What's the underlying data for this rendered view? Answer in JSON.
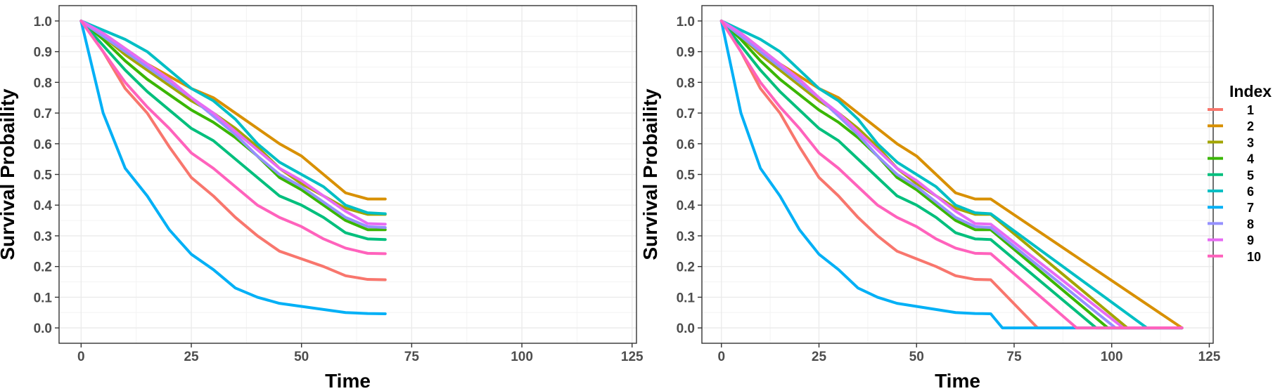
{
  "legend": {
    "title": "Index",
    "entries": [
      {
        "label": "1",
        "color": "#F8766D"
      },
      {
        "label": "2",
        "color": "#D89000"
      },
      {
        "label": "3",
        "color": "#A3A500"
      },
      {
        "label": "4",
        "color": "#39B600"
      },
      {
        "label": "5",
        "color": "#00BF7D"
      },
      {
        "label": "6",
        "color": "#00BFC4"
      },
      {
        "label": "7",
        "color": "#00B0F6"
      },
      {
        "label": "8",
        "color": "#9590FF"
      },
      {
        "label": "9",
        "color": "#E76BF3"
      },
      {
        "label": "10",
        "color": "#FF62BC"
      }
    ]
  },
  "chart_data": [
    {
      "type": "line",
      "xlabel": "Time",
      "ylabel": "Survival Probaility",
      "xlim": [
        -5,
        126
      ],
      "ylim": [
        -0.05,
        1.05
      ],
      "xticks": [
        0,
        25,
        50,
        75,
        100,
        125
      ],
      "yticks": [
        0.0,
        0.1,
        0.2,
        0.3,
        0.4,
        0.5,
        0.6,
        0.7,
        0.8,
        0.9,
        1.0
      ],
      "grid": true,
      "series": [
        {
          "name": "1",
          "color": "#F8766D",
          "x": [
            0,
            5,
            10,
            15,
            20,
            25,
            30,
            35,
            40,
            45,
            50,
            55,
            60,
            65,
            69
          ],
          "y": [
            1.0,
            0.9,
            0.78,
            0.7,
            0.59,
            0.49,
            0.43,
            0.36,
            0.3,
            0.25,
            0.225,
            0.2,
            0.17,
            0.158,
            0.157
          ]
        },
        {
          "name": "2",
          "color": "#D89000",
          "x": [
            0,
            5,
            10,
            15,
            20,
            25,
            30,
            35,
            40,
            45,
            50,
            55,
            60,
            65,
            69
          ],
          "y": [
            1.0,
            0.96,
            0.91,
            0.86,
            0.82,
            0.78,
            0.75,
            0.7,
            0.65,
            0.6,
            0.56,
            0.5,
            0.44,
            0.42,
            0.42
          ]
        },
        {
          "name": "3",
          "color": "#A3A500",
          "x": [
            0,
            5,
            10,
            15,
            20,
            25,
            30,
            35,
            40,
            45,
            50,
            55,
            60,
            65,
            69
          ],
          "y": [
            1.0,
            0.95,
            0.89,
            0.84,
            0.79,
            0.74,
            0.7,
            0.65,
            0.59,
            0.52,
            0.47,
            0.43,
            0.39,
            0.37,
            0.37
          ]
        },
        {
          "name": "4",
          "color": "#39B600",
          "x": [
            0,
            5,
            10,
            15,
            20,
            25,
            30,
            35,
            40,
            45,
            50,
            55,
            60,
            65,
            69
          ],
          "y": [
            1.0,
            0.94,
            0.87,
            0.81,
            0.76,
            0.71,
            0.67,
            0.62,
            0.56,
            0.49,
            0.45,
            0.4,
            0.35,
            0.32,
            0.32
          ]
        },
        {
          "name": "5",
          "color": "#00BF7D",
          "x": [
            0,
            5,
            10,
            15,
            20,
            25,
            30,
            35,
            40,
            45,
            50,
            55,
            60,
            65,
            69
          ],
          "y": [
            1.0,
            0.92,
            0.84,
            0.77,
            0.71,
            0.65,
            0.61,
            0.55,
            0.49,
            0.43,
            0.4,
            0.36,
            0.31,
            0.29,
            0.288
          ]
        },
        {
          "name": "6",
          "color": "#00BFC4",
          "x": [
            0,
            5,
            10,
            15,
            20,
            25,
            30,
            35,
            40,
            45,
            50,
            55,
            60,
            65,
            69
          ],
          "y": [
            1.0,
            0.97,
            0.94,
            0.9,
            0.84,
            0.78,
            0.74,
            0.68,
            0.6,
            0.54,
            0.5,
            0.46,
            0.4,
            0.375,
            0.372
          ]
        },
        {
          "name": "7",
          "color": "#00B0F6",
          "x": [
            0,
            5,
            10,
            15,
            20,
            25,
            30,
            35,
            40,
            45,
            50,
            55,
            60,
            65,
            69
          ],
          "y": [
            1.0,
            0.7,
            0.52,
            0.43,
            0.32,
            0.24,
            0.19,
            0.13,
            0.1,
            0.08,
            0.07,
            0.06,
            0.05,
            0.047,
            0.046
          ]
        },
        {
          "name": "8",
          "color": "#9590FF",
          "x": [
            0,
            5,
            10,
            15,
            20,
            25,
            30,
            35,
            40,
            45,
            50,
            55,
            60,
            65,
            69
          ],
          "y": [
            1.0,
            0.95,
            0.9,
            0.85,
            0.8,
            0.75,
            0.69,
            0.63,
            0.56,
            0.5,
            0.46,
            0.41,
            0.36,
            0.33,
            0.327
          ]
        },
        {
          "name": "9",
          "color": "#E76BF3",
          "x": [
            0,
            5,
            10,
            15,
            20,
            25,
            30,
            35,
            40,
            45,
            50,
            55,
            60,
            65,
            69
          ],
          "y": [
            1.0,
            0.96,
            0.91,
            0.86,
            0.81,
            0.75,
            0.7,
            0.64,
            0.58,
            0.52,
            0.48,
            0.43,
            0.38,
            0.34,
            0.338
          ]
        },
        {
          "name": "10",
          "color": "#FF62BC",
          "x": [
            0,
            5,
            10,
            15,
            20,
            25,
            30,
            35,
            40,
            45,
            50,
            55,
            60,
            65,
            69
          ],
          "y": [
            1.0,
            0.9,
            0.8,
            0.72,
            0.65,
            0.57,
            0.52,
            0.46,
            0.4,
            0.36,
            0.33,
            0.29,
            0.26,
            0.243,
            0.242
          ]
        }
      ]
    },
    {
      "type": "line",
      "xlabel": "Time",
      "ylabel": "Survival Probaility",
      "xlim": [
        -5,
        126
      ],
      "ylim": [
        -0.05,
        1.05
      ],
      "xticks": [
        0,
        25,
        50,
        75,
        100,
        125
      ],
      "yticks": [
        0.0,
        0.1,
        0.2,
        0.3,
        0.4,
        0.5,
        0.6,
        0.7,
        0.8,
        0.9,
        1.0
      ],
      "grid": true,
      "series": [
        {
          "name": "1",
          "color": "#F8766D",
          "x": [
            0,
            5,
            10,
            15,
            20,
            25,
            30,
            35,
            40,
            45,
            50,
            55,
            60,
            65,
            69,
            81,
            118
          ],
          "y": [
            1.0,
            0.9,
            0.78,
            0.7,
            0.59,
            0.49,
            0.43,
            0.36,
            0.3,
            0.25,
            0.225,
            0.2,
            0.17,
            0.158,
            0.157,
            0.0,
            0.0
          ]
        },
        {
          "name": "2",
          "color": "#D89000",
          "x": [
            0,
            5,
            10,
            15,
            20,
            25,
            30,
            35,
            40,
            45,
            50,
            55,
            60,
            65,
            69,
            118
          ],
          "y": [
            1.0,
            0.96,
            0.91,
            0.86,
            0.82,
            0.78,
            0.75,
            0.7,
            0.65,
            0.6,
            0.56,
            0.5,
            0.44,
            0.42,
            0.42,
            0.0
          ]
        },
        {
          "name": "3",
          "color": "#A3A500",
          "x": [
            0,
            5,
            10,
            15,
            20,
            25,
            30,
            35,
            40,
            45,
            50,
            55,
            60,
            65,
            69,
            104,
            118
          ],
          "y": [
            1.0,
            0.95,
            0.89,
            0.84,
            0.79,
            0.74,
            0.7,
            0.65,
            0.59,
            0.52,
            0.47,
            0.43,
            0.39,
            0.37,
            0.37,
            0.0,
            0.0
          ]
        },
        {
          "name": "4",
          "color": "#39B600",
          "x": [
            0,
            5,
            10,
            15,
            20,
            25,
            30,
            35,
            40,
            45,
            50,
            55,
            60,
            65,
            69,
            99,
            118
          ],
          "y": [
            1.0,
            0.94,
            0.87,
            0.81,
            0.76,
            0.71,
            0.67,
            0.62,
            0.56,
            0.49,
            0.45,
            0.4,
            0.35,
            0.32,
            0.32,
            0.0,
            0.0
          ]
        },
        {
          "name": "5",
          "color": "#00BF7D",
          "x": [
            0,
            5,
            10,
            15,
            20,
            25,
            30,
            35,
            40,
            45,
            50,
            55,
            60,
            65,
            69,
            96,
            118
          ],
          "y": [
            1.0,
            0.92,
            0.84,
            0.77,
            0.71,
            0.65,
            0.61,
            0.55,
            0.49,
            0.43,
            0.4,
            0.36,
            0.31,
            0.29,
            0.288,
            0.0,
            0.0
          ]
        },
        {
          "name": "6",
          "color": "#00BFC4",
          "x": [
            0,
            5,
            10,
            15,
            20,
            25,
            30,
            35,
            40,
            45,
            50,
            55,
            60,
            65,
            69,
            109,
            118
          ],
          "y": [
            1.0,
            0.97,
            0.94,
            0.9,
            0.84,
            0.78,
            0.74,
            0.68,
            0.6,
            0.54,
            0.5,
            0.46,
            0.4,
            0.375,
            0.372,
            0.0,
            0.0
          ]
        },
        {
          "name": "7",
          "color": "#00B0F6",
          "x": [
            0,
            5,
            10,
            15,
            20,
            25,
            30,
            35,
            40,
            45,
            50,
            55,
            60,
            65,
            69,
            72,
            118
          ],
          "y": [
            1.0,
            0.7,
            0.52,
            0.43,
            0.32,
            0.24,
            0.19,
            0.13,
            0.1,
            0.08,
            0.07,
            0.06,
            0.05,
            0.047,
            0.046,
            0.0,
            0.0
          ]
        },
        {
          "name": "8",
          "color": "#9590FF",
          "x": [
            0,
            5,
            10,
            15,
            20,
            25,
            30,
            35,
            40,
            45,
            50,
            55,
            60,
            65,
            69,
            101,
            118
          ],
          "y": [
            1.0,
            0.95,
            0.9,
            0.85,
            0.8,
            0.75,
            0.69,
            0.63,
            0.56,
            0.5,
            0.46,
            0.41,
            0.36,
            0.33,
            0.327,
            0.0,
            0.0
          ]
        },
        {
          "name": "9",
          "color": "#E76BF3",
          "x": [
            0,
            5,
            10,
            15,
            20,
            25,
            30,
            35,
            40,
            45,
            50,
            55,
            60,
            65,
            69,
            103,
            118
          ],
          "y": [
            1.0,
            0.96,
            0.91,
            0.86,
            0.81,
            0.75,
            0.7,
            0.64,
            0.58,
            0.52,
            0.48,
            0.43,
            0.38,
            0.34,
            0.338,
            0.0,
            0.0
          ]
        },
        {
          "name": "10",
          "color": "#FF62BC",
          "x": [
            0,
            5,
            10,
            15,
            20,
            25,
            30,
            35,
            40,
            45,
            50,
            55,
            60,
            65,
            69,
            91,
            118
          ],
          "y": [
            1.0,
            0.9,
            0.8,
            0.72,
            0.65,
            0.57,
            0.52,
            0.46,
            0.4,
            0.36,
            0.33,
            0.29,
            0.26,
            0.243,
            0.242,
            0.0,
            0.0
          ]
        }
      ]
    }
  ]
}
